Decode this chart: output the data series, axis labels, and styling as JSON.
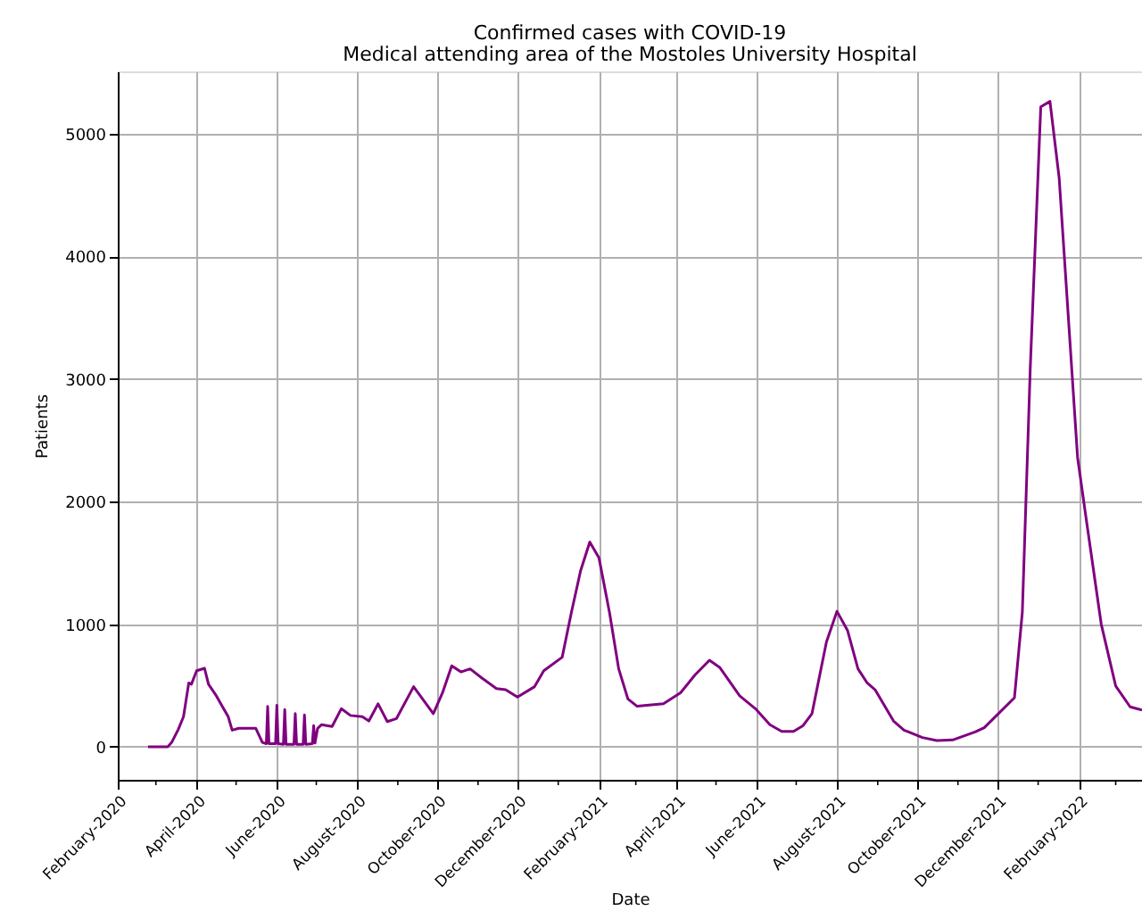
{
  "chart_data": {
    "type": "line",
    "title": "Confirmed cases with COVID-19",
    "subtitle": "Medical attending area of the Mostoles University Hospital",
    "xlabel": "Date",
    "ylabel": "Patients",
    "xlim": [
      "2020-02-01",
      "2022-03-21"
    ],
    "ylim": [
      -270,
      5510
    ],
    "xticks": [
      {
        "value": "2020-02-01",
        "label": "February-2020"
      },
      {
        "value": "2020-03-01",
        "label": null
      },
      {
        "value": "2020-04-01",
        "label": "April-2020"
      },
      {
        "value": "2020-05-01",
        "label": null
      },
      {
        "value": "2020-06-01",
        "label": "June-2020"
      },
      {
        "value": "2020-07-01",
        "label": null
      },
      {
        "value": "2020-08-01",
        "label": "August-2020"
      },
      {
        "value": "2020-09-01",
        "label": null
      },
      {
        "value": "2020-10-01",
        "label": "October-2020"
      },
      {
        "value": "2020-11-01",
        "label": null
      },
      {
        "value": "2020-12-01",
        "label": "December-2020"
      },
      {
        "value": "2021-01-01",
        "label": null
      },
      {
        "value": "2021-02-01",
        "label": "February-2021"
      },
      {
        "value": "2021-03-01",
        "label": null
      },
      {
        "value": "2021-04-01",
        "label": "April-2021"
      },
      {
        "value": "2021-05-01",
        "label": null
      },
      {
        "value": "2021-06-01",
        "label": "June-2021"
      },
      {
        "value": "2021-07-01",
        "label": null
      },
      {
        "value": "2021-08-01",
        "label": "August-2021"
      },
      {
        "value": "2021-09-01",
        "label": null
      },
      {
        "value": "2021-10-01",
        "label": "October-2021"
      },
      {
        "value": "2021-11-01",
        "label": null
      },
      {
        "value": "2021-12-01",
        "label": "December-2021"
      },
      {
        "value": "2022-01-01",
        "label": null
      },
      {
        "value": "2022-02-01",
        "label": "February-2022"
      },
      {
        "value": "2022-03-01",
        "label": null
      }
    ],
    "yticks": [
      0,
      1000,
      2000,
      3000,
      4000,
      5000
    ],
    "grid": true,
    "line_style": "solid",
    "marker": "none",
    "series": [
      {
        "color": "#800080",
        "x": [
          "2020-02-24",
          "2020-03-10",
          "2020-03-13",
          "2020-03-18",
          "2020-03-22",
          "2020-03-26",
          "2020-03-28",
          "2020-04-01",
          "2020-04-07",
          "2020-04-10",
          "2020-04-16",
          "2020-04-21",
          "2020-04-25",
          "2020-04-28",
          "2020-05-03",
          "2020-05-16",
          "2020-05-21",
          "2020-05-24",
          "2020-05-25",
          "2020-05-26",
          "2020-05-31",
          "2020-06-01",
          "2020-06-02",
          "2020-06-06",
          "2020-06-07",
          "2020-06-08",
          "2020-06-14",
          "2020-06-15",
          "2020-06-16",
          "2020-06-21",
          "2020-06-22",
          "2020-06-23",
          "2020-06-28",
          "2020-06-29",
          "2020-06-30",
          "2020-07-02",
          "2020-07-05",
          "2020-07-13",
          "2020-07-20",
          "2020-07-27",
          "2020-08-05",
          "2020-08-10",
          "2020-08-17",
          "2020-08-24",
          "2020-08-31",
          "2020-09-13",
          "2020-09-28",
          "2020-10-05",
          "2020-10-12",
          "2020-10-19",
          "2020-10-26",
          "2020-11-04",
          "2020-11-15",
          "2020-11-22",
          "2020-12-01",
          "2020-12-14",
          "2020-12-21",
          "2021-01-04",
          "2021-01-11",
          "2021-01-18",
          "2021-01-25",
          "2021-02-01",
          "2021-02-09",
          "2021-02-16",
          "2021-02-23",
          "2021-03-02",
          "2021-03-11",
          "2021-03-22",
          "2021-04-04",
          "2021-04-15",
          "2021-04-26",
          "2021-05-04",
          "2021-05-19",
          "2021-05-31",
          "2021-06-11",
          "2021-06-20",
          "2021-06-29",
          "2021-07-06",
          "2021-07-13",
          "2021-07-24",
          "2021-08-01",
          "2021-08-09",
          "2021-08-17",
          "2021-08-24",
          "2021-08-30",
          "2021-09-13",
          "2021-09-21",
          "2021-10-05",
          "2021-10-16",
          "2021-10-28",
          "2021-11-14",
          "2021-11-21",
          "2021-12-14",
          "2021-12-20",
          "2021-12-26",
          "2022-01-03",
          "2022-01-10",
          "2022-01-17",
          "2022-01-31",
          "2022-02-07",
          "2022-02-18",
          "2022-03-01",
          "2022-03-12",
          "2022-03-21"
        ],
        "values": [
          0,
          0,
          35,
          140,
          245,
          520,
          510,
          620,
          640,
          510,
          415,
          320,
          245,
          135,
          150,
          150,
          35,
          25,
          328,
          25,
          25,
          338,
          25,
          20,
          303,
          20,
          20,
          270,
          20,
          20,
          260,
          20,
          25,
          172,
          30,
          150,
          180,
          165,
          310,
          255,
          245,
          210,
          350,
          205,
          230,
          490,
          270,
          440,
          660,
          610,
          635,
          560,
          475,
          465,
          405,
          490,
          620,
          730,
          1095,
          1435,
          1670,
          1540,
          1095,
          635,
          390,
          330,
          340,
          350,
          440,
          585,
          705,
          645,
          415,
          310,
          180,
          125,
          125,
          170,
          270,
          855,
          1105,
          950,
          635,
          520,
          465,
          210,
          135,
          75,
          50,
          55,
          120,
          155,
          400,
          1100,
          3085,
          5220,
          5265,
          4640,
          2360,
          1825,
          1000,
          495,
          325,
          300
        ]
      }
    ]
  }
}
